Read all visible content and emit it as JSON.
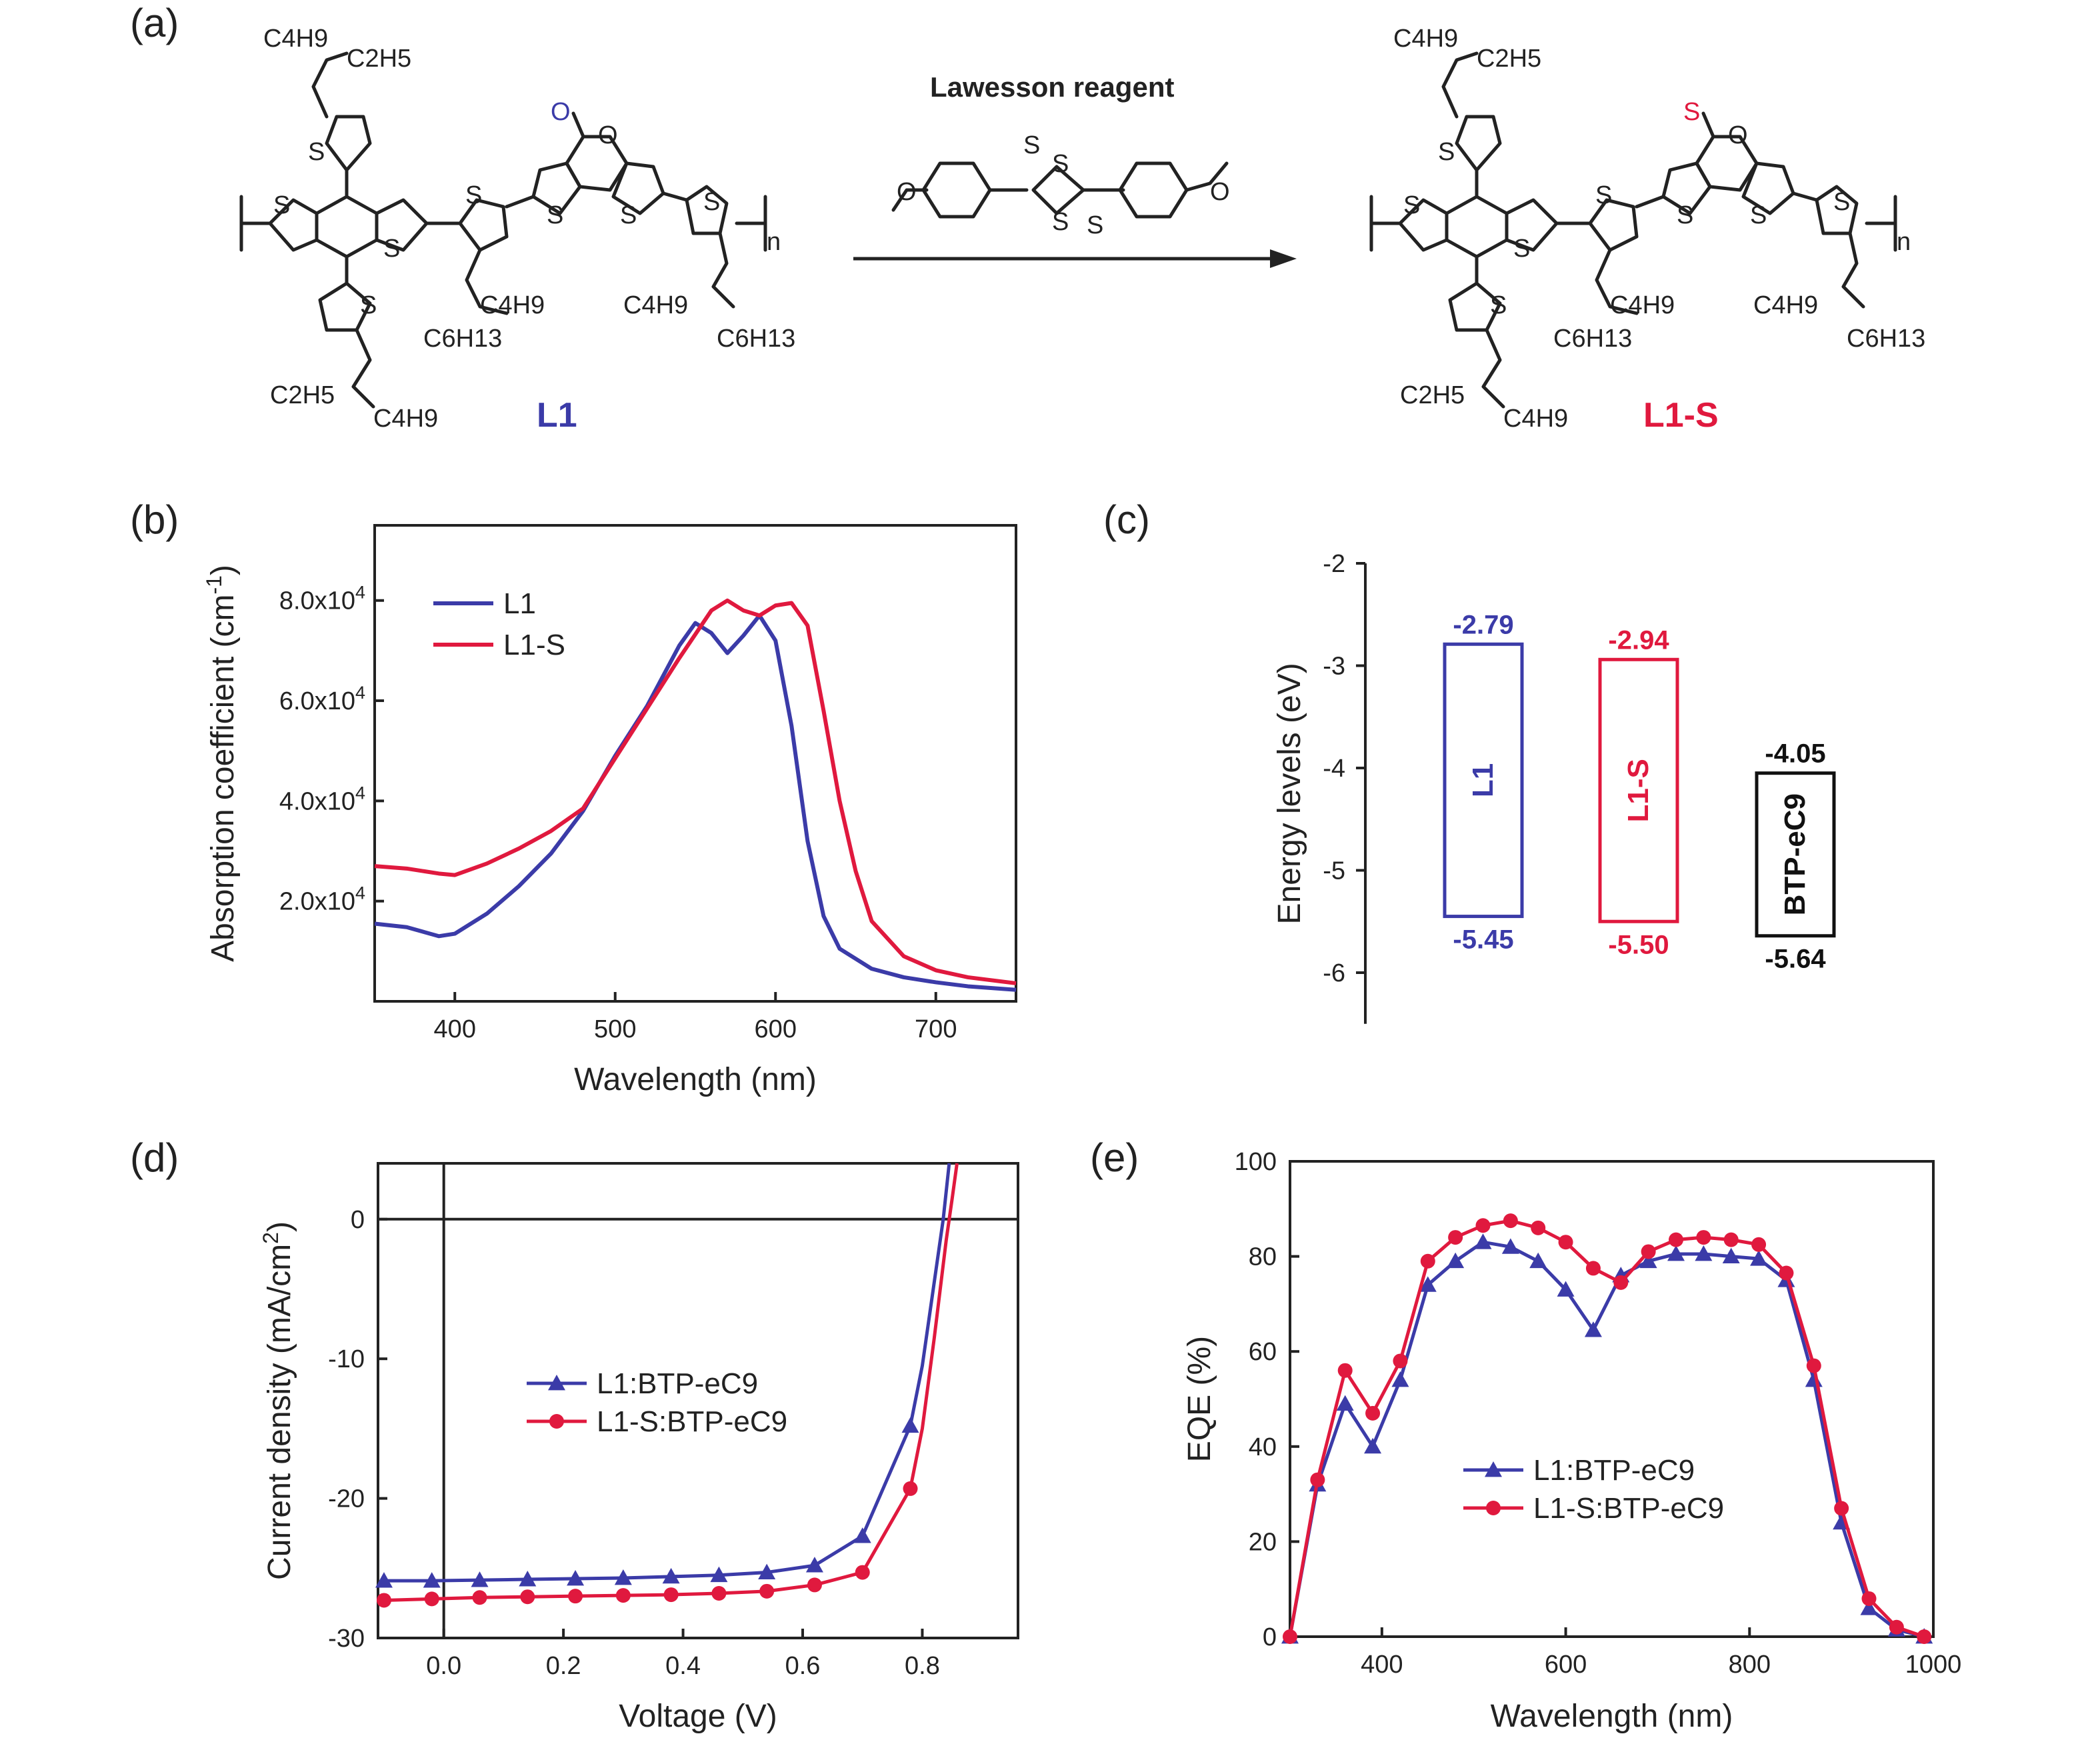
{
  "panels": {
    "a": "(a)",
    "b": "(b)",
    "c": "(c)",
    "d": "(d)",
    "e": "(e)"
  },
  "scheme": {
    "reagent": "Lawesson reagent",
    "product_left": "L1",
    "product_right": "L1-S",
    "atom_o": "O",
    "atom_s": "S",
    "subscript_n": "n",
    "alkyl": {
      "c4h9": "C4H9",
      "c2h5": "C2H5",
      "c6h13": "C6H13"
    },
    "colors": {
      "L1": "#3b3ba8",
      "L1-S": "#e0193e"
    }
  },
  "chart_data": [
    {
      "id": "b",
      "type": "line",
      "xlabel": "Wavelength (nm)",
      "ylabel": "Absorption coefficient (cm-1)",
      "xlim": [
        350,
        750
      ],
      "ylim": [
        0,
        95000
      ],
      "xticks": [
        400,
        500,
        600,
        700
      ],
      "yticks": [
        20000,
        40000,
        60000,
        80000
      ],
      "ytick_labels": [
        "2.0x10^4",
        "4.0x10^4",
        "6.0x10^4",
        "8.0x10^4"
      ],
      "legend": "top-left",
      "series": [
        {
          "name": "L1",
          "color": "#3b3ba8",
          "x": [
            350,
            370,
            390,
            400,
            420,
            440,
            460,
            480,
            500,
            520,
            540,
            550,
            560,
            570,
            580,
            590,
            600,
            610,
            620,
            630,
            640,
            660,
            680,
            700,
            720,
            750
          ],
          "y": [
            15500,
            14800,
            13000,
            13500,
            17500,
            23000,
            29500,
            38000,
            49000,
            59000,
            71000,
            75500,
            73500,
            69500,
            73000,
            77000,
            72000,
            55000,
            32000,
            17000,
            10500,
            6500,
            4800,
            3800,
            3000,
            2300
          ]
        },
        {
          "name": "L1-S",
          "color": "#e0193e",
          "x": [
            350,
            370,
            390,
            400,
            420,
            440,
            460,
            480,
            500,
            520,
            540,
            560,
            570,
            580,
            590,
            600,
            610,
            620,
            630,
            640,
            650,
            660,
            680,
            700,
            720,
            750
          ],
          "y": [
            27000,
            26500,
            25500,
            25200,
            27500,
            30500,
            34000,
            38500,
            48500,
            58500,
            68500,
            78000,
            80000,
            78000,
            77000,
            79000,
            79500,
            75000,
            58000,
            40000,
            26000,
            16000,
            9000,
            6200,
            4800,
            3600
          ]
        }
      ]
    },
    {
      "id": "c",
      "type": "bar",
      "ylabel": "Energy levels (eV)",
      "ylim": [
        -6.5,
        -2
      ],
      "yticks": [
        -2,
        -3,
        -4,
        -5,
        -6
      ],
      "categories": [
        "L1",
        "L1-S",
        "BTP-eC9"
      ],
      "lumo": [
        -2.79,
        -2.94,
        -4.05
      ],
      "homo": [
        -5.45,
        -5.5,
        -5.64
      ],
      "lumo_labels": [
        "-2.79",
        "-2.94",
        "-4.05"
      ],
      "homo_labels": [
        "-5.45",
        "-5.50",
        "-5.64"
      ],
      "colors": [
        "#3b3ba8",
        "#e0193e",
        "#111111"
      ]
    },
    {
      "id": "d",
      "type": "line",
      "xlabel": "Voltage (V)",
      "ylabel": "Current density (mA/cm2)",
      "xlim": [
        -0.11,
        0.96
      ],
      "ylim": [
        -30,
        4
      ],
      "xticks": [
        0.0,
        0.2,
        0.4,
        0.6,
        0.8
      ],
      "xtick_labels": [
        "0.0",
        "0.2",
        "0.4",
        "0.6",
        "0.8"
      ],
      "yticks": [
        0,
        -10,
        -20,
        -30
      ],
      "ytick_labels": [
        "0",
        "-10",
        "-20",
        "-30"
      ],
      "legend": "center",
      "series": [
        {
          "name": "L1:BTP-eC9",
          "color": "#3b3ba8",
          "marker": "triangle",
          "x": [
            -0.1,
            -0.02,
            0.06,
            0.14,
            0.22,
            0.3,
            0.38,
            0.46,
            0.54,
            0.62,
            0.7,
            0.78,
            0.8,
            0.82,
            0.835,
            0.845
          ],
          "y": [
            -25.9,
            -25.9,
            -25.85,
            -25.8,
            -25.75,
            -25.7,
            -25.6,
            -25.5,
            -25.3,
            -24.8,
            -22.7,
            -14.8,
            -10.5,
            -4.5,
            0.0,
            4.0
          ],
          "markers": [
            0,
            1,
            2,
            3,
            4,
            5,
            6,
            7,
            8,
            9,
            10,
            11
          ]
        },
        {
          "name": "L1-S:BTP-eC9",
          "color": "#e0193e",
          "marker": "circle",
          "x": [
            -0.1,
            -0.02,
            0.06,
            0.14,
            0.22,
            0.3,
            0.38,
            0.46,
            0.54,
            0.62,
            0.7,
            0.78,
            0.8,
            0.82,
            0.84,
            0.85,
            0.858
          ],
          "y": [
            -27.3,
            -27.2,
            -27.1,
            -27.05,
            -27.0,
            -26.95,
            -26.9,
            -26.8,
            -26.65,
            -26.2,
            -25.3,
            -19.3,
            -15.0,
            -8.5,
            -1.5,
            1.5,
            4.0
          ],
          "markers": [
            0,
            1,
            2,
            3,
            4,
            5,
            6,
            7,
            8,
            9,
            10,
            11
          ]
        }
      ]
    },
    {
      "id": "e",
      "type": "line",
      "xlabel": "Wavelength (nm)",
      "ylabel": "EQE (%)",
      "xlim": [
        300,
        1000
      ],
      "ylim": [
        0,
        100
      ],
      "xticks": [
        400,
        600,
        800,
        1000
      ],
      "yticks": [
        0,
        20,
        40,
        60,
        80,
        100
      ],
      "legend": "lower-left",
      "series": [
        {
          "name": "L1:BTP-eC9",
          "color": "#3b3ba8",
          "marker": "triangle",
          "x": [
            300,
            330,
            360,
            390,
            420,
            450,
            480,
            510,
            540,
            570,
            600,
            630,
            660,
            690,
            720,
            750,
            780,
            810,
            840,
            870,
            900,
            930,
            960,
            990
          ],
          "y": [
            0,
            32,
            49,
            40,
            54,
            74,
            79,
            83,
            82,
            79,
            73,
            64.5,
            76,
            79,
            80.5,
            80.5,
            80,
            79.5,
            75,
            54,
            24,
            6,
            1.5,
            0
          ]
        },
        {
          "name": "L1-S:BTP-eC9",
          "color": "#e0193e",
          "marker": "circle",
          "x": [
            300,
            330,
            360,
            390,
            420,
            450,
            480,
            510,
            540,
            570,
            600,
            630,
            660,
            690,
            720,
            750,
            780,
            810,
            840,
            870,
            900,
            930,
            960,
            990
          ],
          "y": [
            0,
            33,
            56,
            47,
            58,
            79,
            84,
            86.5,
            87.5,
            86,
            83,
            77.5,
            74.5,
            81,
            83.5,
            84,
            83.5,
            82.5,
            76.5,
            57,
            27,
            8,
            2,
            0
          ]
        }
      ]
    }
  ]
}
